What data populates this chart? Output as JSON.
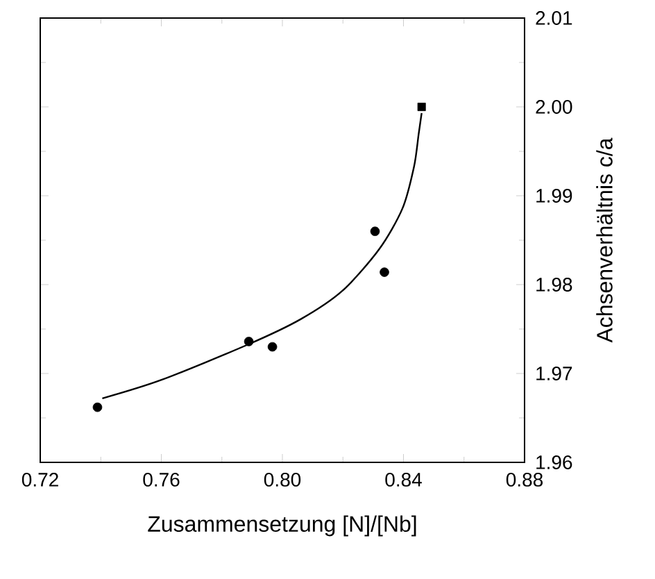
{
  "chart_data": {
    "type": "scatter",
    "xlabel": "Zusammensetzung [N]/[Nb]",
    "ylabel": "Achsenverhältnis c/a",
    "xlim": [
      0.72,
      0.88
    ],
    "xticks": [
      0.72,
      0.76,
      {
        "value": 0.8,
        "label": "0.80"
      },
      0.84,
      0.88
    ],
    "ylim": [
      1.96,
      2.01
    ],
    "yticks": [
      1.96,
      1.97,
      1.98,
      1.99,
      {
        "value": 2.0,
        "label": "2.00"
      },
      2.01
    ],
    "series": [
      {
        "marker": "circle",
        "color": "#000000",
        "x": [
          0.7389,
          0.7889,
          0.7967,
          0.8306,
          0.8337
        ],
        "values": [
          1.9662,
          1.9736,
          1.973,
          1.986,
          1.9814
        ]
      },
      {
        "marker": "square",
        "color": "#000000",
        "x": [
          0.846
        ],
        "values": [
          2.0
        ]
      },
      {
        "type": "line",
        "marker": "none",
        "color": "#000000",
        "x": [
          0.7405,
          0.7602,
          0.7889,
          0.806,
          0.8198,
          0.832,
          0.8397,
          0.8435,
          0.845,
          0.846
        ],
        "values": [
          1.9672,
          1.9693,
          1.9733,
          1.9761,
          1.9793,
          1.984,
          1.9886,
          1.9933,
          1.9969,
          1.9993
        ]
      }
    ]
  }
}
